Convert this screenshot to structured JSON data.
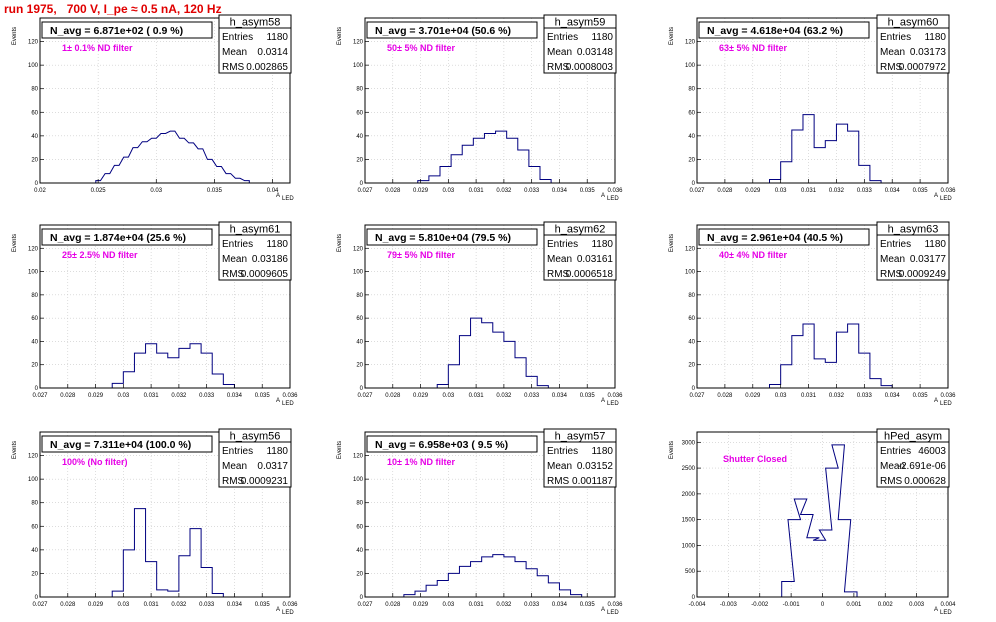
{
  "title": "run 1975,   700 V, I_pe ≈ 0.5 nA, 120 Hz",
  "y_axis_label": "Events",
  "x_axis_label": "A",
  "x_axis_sub": "LED",
  "stat_labels": {
    "entries": "Entries",
    "mean": "Mean",
    "rms": "RMS"
  },
  "colors": {
    "line": "#000080",
    "title": "#e00000",
    "filter": "#e600e6",
    "grid": "#c8c8c8"
  },
  "chart_data": [
    {
      "type": "bar",
      "name": "h_asym58",
      "navg": "N_avg = 6.871e+02 ( 0.9 %)",
      "filter": "1± 0.1% ND filter",
      "stats": {
        "entries": "1180",
        "mean": "0.0314",
        "rms": "0.002865"
      },
      "xlim": [
        0.02,
        0.0415
      ],
      "ylim": [
        0,
        140
      ],
      "xticks": [
        0.02,
        0.025,
        0.03,
        0.035,
        0.04
      ],
      "xtick_labels": [
        "0.02",
        "0.025",
        "0.03",
        "0.035",
        "0.04"
      ],
      "yticks": [
        0,
        20,
        40,
        60,
        80,
        100,
        120
      ],
      "centers": [
        0.025,
        0.0258,
        0.0266,
        0.0274,
        0.0282,
        0.029,
        0.0298,
        0.0306,
        0.0314,
        0.0322,
        0.033,
        0.0338,
        0.0346,
        0.0354,
        0.0362,
        0.037,
        0.0378
      ],
      "values": [
        2,
        8,
        15,
        22,
        30,
        35,
        38,
        42,
        44,
        38,
        34,
        29,
        20,
        14,
        8,
        4,
        2
      ]
    },
    {
      "type": "bar",
      "name": "h_asym59",
      "navg": "N_avg = 3.701e+04 (50.6 %)",
      "filter": "50± 5% ND filter",
      "stats": {
        "entries": "1180",
        "mean": "0.03148",
        "rms": "0.0008003"
      },
      "xlim": [
        0.027,
        0.036
      ],
      "ylim": [
        0,
        140
      ],
      "xticks": [
        0.027,
        0.028,
        0.029,
        0.03,
        0.031,
        0.032,
        0.033,
        0.034,
        0.035,
        0.036
      ],
      "xtick_labels": [
        "0.027",
        "0.028",
        "0.029",
        "0.03",
        "0.031",
        "0.032",
        "0.033",
        "0.034",
        "0.035",
        "0.036"
      ],
      "yticks": [
        0,
        20,
        40,
        60,
        80,
        100,
        120
      ],
      "centers": [
        0.0291,
        0.0295,
        0.0299,
        0.0303,
        0.0307,
        0.0311,
        0.0315,
        0.0319,
        0.0323,
        0.0327,
        0.0331,
        0.0335
      ],
      "values": [
        2,
        6,
        14,
        24,
        32,
        38,
        42,
        44,
        38,
        28,
        14,
        3
      ]
    },
    {
      "type": "bar",
      "name": "h_asym60",
      "navg": "N_avg = 4.618e+04 (63.2 %)",
      "filter": "63± 5% ND filter",
      "stats": {
        "entries": "1180",
        "mean": "0.03173",
        "rms": "0.0007972"
      },
      "xlim": [
        0.027,
        0.036
      ],
      "ylim": [
        0,
        140
      ],
      "xticks": [
        0.027,
        0.028,
        0.029,
        0.03,
        0.031,
        0.032,
        0.033,
        0.034,
        0.035,
        0.036
      ],
      "xtick_labels": [
        "0.027",
        "0.028",
        "0.029",
        "0.03",
        "0.031",
        "0.032",
        "0.033",
        "0.034",
        "0.035",
        "0.036"
      ],
      "yticks": [
        0,
        20,
        40,
        60,
        80,
        100,
        120
      ],
      "centers": [
        0.0298,
        0.0302,
        0.0306,
        0.031,
        0.0314,
        0.0318,
        0.0322,
        0.0326,
        0.033,
        0.0334
      ],
      "values": [
        3,
        18,
        45,
        58,
        30,
        36,
        50,
        44,
        15,
        2
      ]
    },
    {
      "type": "bar",
      "name": "h_asym61",
      "navg": "N_avg = 1.874e+04 (25.6 %)",
      "filter": "25± 2.5% ND filter",
      "stats": {
        "entries": "1180",
        "mean": "0.03186",
        "rms": "0.0009605"
      },
      "xlim": [
        0.027,
        0.036
      ],
      "ylim": [
        0,
        140
      ],
      "xticks": [
        0.027,
        0.028,
        0.029,
        0.03,
        0.031,
        0.032,
        0.033,
        0.034,
        0.035,
        0.036
      ],
      "xtick_labels": [
        "0.027",
        "0.028",
        "0.029",
        "0.03",
        "0.031",
        "0.032",
        "0.033",
        "0.034",
        "0.035",
        "0.036"
      ],
      "yticks": [
        0,
        20,
        40,
        60,
        80,
        100,
        120
      ],
      "centers": [
        0.0298,
        0.0302,
        0.0306,
        0.031,
        0.0314,
        0.0318,
        0.0322,
        0.0326,
        0.033,
        0.0334,
        0.0338
      ],
      "values": [
        4,
        14,
        30,
        38,
        30,
        26,
        34,
        38,
        30,
        12,
        3
      ]
    },
    {
      "type": "bar",
      "name": "h_asym62",
      "navg": "N_avg = 5.810e+04 (79.5 %)",
      "filter": "79± 5% ND filter",
      "stats": {
        "entries": "1180",
        "mean": "0.03161",
        "rms": "0.0006518"
      },
      "xlim": [
        0.027,
        0.036
      ],
      "ylim": [
        0,
        140
      ],
      "xticks": [
        0.027,
        0.028,
        0.029,
        0.03,
        0.031,
        0.032,
        0.033,
        0.034,
        0.035,
        0.036
      ],
      "xtick_labels": [
        "0.027",
        "0.028",
        "0.029",
        "0.03",
        "0.031",
        "0.032",
        "0.033",
        "0.034",
        "0.035",
        "0.036"
      ],
      "yticks": [
        0,
        20,
        40,
        60,
        80,
        100,
        120
      ],
      "centers": [
        0.0298,
        0.0302,
        0.0306,
        0.031,
        0.0314,
        0.0318,
        0.0322,
        0.0326,
        0.033,
        0.0334
      ],
      "values": [
        3,
        20,
        45,
        60,
        56,
        48,
        40,
        26,
        10,
        2
      ]
    },
    {
      "type": "bar",
      "name": "h_asym63",
      "navg": "N_avg = 2.961e+04 (40.5 %)",
      "filter": "40± 4% ND filter",
      "stats": {
        "entries": "1180",
        "mean": "0.03177",
        "rms": "0.0009249"
      },
      "xlim": [
        0.027,
        0.036
      ],
      "ylim": [
        0,
        140
      ],
      "xticks": [
        0.027,
        0.028,
        0.029,
        0.03,
        0.031,
        0.032,
        0.033,
        0.034,
        0.035,
        0.036
      ],
      "xtick_labels": [
        "0.027",
        "0.028",
        "0.029",
        "0.03",
        "0.031",
        "0.032",
        "0.033",
        "0.034",
        "0.035",
        "0.036"
      ],
      "yticks": [
        0,
        20,
        40,
        60,
        80,
        100,
        120
      ],
      "centers": [
        0.0298,
        0.0302,
        0.0306,
        0.031,
        0.0314,
        0.0318,
        0.0322,
        0.0326,
        0.033,
        0.0334,
        0.0338
      ],
      "values": [
        3,
        20,
        45,
        55,
        25,
        22,
        48,
        55,
        30,
        8,
        2
      ]
    },
    {
      "type": "bar",
      "name": "h_asym56",
      "navg": "N_avg = 7.311e+04 (100.0 %)",
      "filter": "100% (No filter)",
      "stats": {
        "entries": "1180",
        "mean": "0.0317",
        "rms": "0.0009231"
      },
      "xlim": [
        0.027,
        0.036
      ],
      "ylim": [
        0,
        140
      ],
      "xticks": [
        0.027,
        0.028,
        0.029,
        0.03,
        0.031,
        0.032,
        0.033,
        0.034,
        0.035,
        0.036
      ],
      "xtick_labels": [
        "0.027",
        "0.028",
        "0.029",
        "0.03",
        "0.031",
        "0.032",
        "0.033",
        "0.034",
        "0.035",
        "0.036"
      ],
      "yticks": [
        0,
        20,
        40,
        60,
        80,
        100,
        120
      ],
      "centers": [
        0.0298,
        0.0302,
        0.0306,
        0.031,
        0.0314,
        0.0318,
        0.0322,
        0.0326,
        0.033,
        0.0334
      ],
      "values": [
        5,
        40,
        75,
        30,
        6,
        5,
        35,
        58,
        25,
        3
      ]
    },
    {
      "type": "bar",
      "name": "h_asym57",
      "navg": "N_avg = 6.958e+03 ( 9.5 %)",
      "filter": "10± 1% ND filter",
      "stats": {
        "entries": "1180",
        "mean": "0.03152",
        "rms": "0.001187"
      },
      "xlim": [
        0.027,
        0.036
      ],
      "ylim": [
        0,
        140
      ],
      "xticks": [
        0.027,
        0.028,
        0.029,
        0.03,
        0.031,
        0.032,
        0.033,
        0.034,
        0.035,
        0.036
      ],
      "xtick_labels": [
        "0.027",
        "0.028",
        "0.029",
        "0.03",
        "0.031",
        "0.032",
        "0.033",
        "0.034",
        "0.035",
        "0.036"
      ],
      "yticks": [
        0,
        20,
        40,
        60,
        80,
        100,
        120
      ],
      "centers": [
        0.0286,
        0.029,
        0.0294,
        0.0298,
        0.0302,
        0.0306,
        0.031,
        0.0314,
        0.0318,
        0.0322,
        0.0326,
        0.033,
        0.0334,
        0.0338,
        0.0342,
        0.0346
      ],
      "values": [
        2,
        5,
        10,
        14,
        20,
        26,
        30,
        34,
        36,
        34,
        30,
        24,
        18,
        12,
        6,
        2
      ]
    },
    {
      "type": "bar",
      "name": "hPed_asym",
      "navg": "",
      "filter": "Shutter Closed",
      "stats": {
        "entries": "46003",
        "mean": "-2.691e-06",
        "rms": "0.000628"
      },
      "xlim": [
        -0.004,
        0.004
      ],
      "ylim": [
        0,
        3200
      ],
      "xticks": [
        -0.004,
        -0.003,
        -0.002,
        -0.001,
        0,
        0.001,
        0.002,
        0.003,
        0.004
      ],
      "xtick_labels": [
        "-0.004",
        "-0.003",
        "-0.002",
        "-0.001",
        "0",
        "0.001",
        "0.002",
        "0.003",
        "0.004"
      ],
      "yticks": [
        0,
        500,
        1000,
        1500,
        2000,
        2500,
        3000
      ],
      "centers": [
        -0.0011,
        -0.0009,
        -0.0007,
        -0.0005,
        -0.0003,
        -0.0001,
        0.0001,
        0.0003,
        0.0005,
        0.0007,
        0.0009
      ],
      "values": [
        300,
        1500,
        1900,
        1600,
        1150,
        1100,
        1300,
        2500,
        2950,
        1500,
        100
      ]
    }
  ]
}
